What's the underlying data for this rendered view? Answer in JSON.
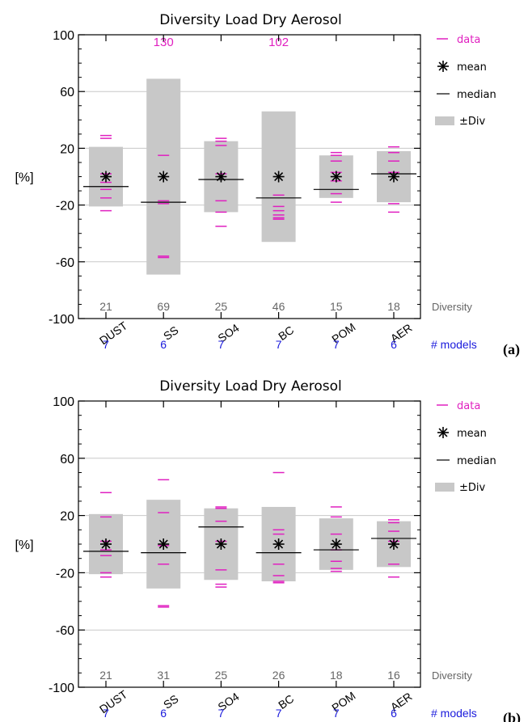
{
  "chart_data": [
    {
      "type": "box",
      "panel_label": "(a)",
      "title": "Diversity Load Dry Aerosol",
      "ylabel": "[%]",
      "ylim": [
        -100,
        100
      ],
      "yticks": [
        -100,
        -60,
        -20,
        20,
        60,
        100
      ],
      "gridlines": [
        -60,
        -20,
        20,
        60
      ],
      "categories": [
        "DUST",
        "SS",
        "SO4",
        "BC",
        "POM",
        "AER"
      ],
      "diversity": [
        21,
        69,
        25,
        46,
        15,
        18
      ],
      "n_models": [
        7,
        6,
        7,
        7,
        7,
        6
      ],
      "mean": [
        0,
        0,
        0,
        0,
        0,
        0
      ],
      "median": [
        -7,
        -18,
        -2,
        -15,
        -9,
        2
      ],
      "data": [
        [
          29,
          27,
          2,
          -4,
          -9,
          -15,
          -24
        ],
        [
          130,
          15,
          -17,
          -19,
          -56,
          -57
        ],
        [
          27,
          25,
          22,
          2,
          -17,
          -25,
          -35
        ],
        [
          102,
          -13,
          -21,
          -24,
          -27,
          -29,
          -30
        ],
        [
          17,
          15,
          11,
          3,
          -3,
          -12,
          -18
        ],
        [
          21,
          17,
          11,
          3,
          -19,
          -25
        ]
      ],
      "overflow_labels": [
        {
          "category": "SS",
          "text": "130"
        },
        {
          "category": "BC",
          "text": "102"
        }
      ],
      "diversity_label": "Diversity",
      "models_label": "# models"
    },
    {
      "type": "box",
      "panel_label": "(b)",
      "title": "Diversity Load Dry Aerosol",
      "ylabel": "[%]",
      "ylim": [
        -100,
        100
      ],
      "yticks": [
        -100,
        -60,
        -20,
        20,
        60,
        100
      ],
      "gridlines": [
        -60,
        -20,
        20,
        60
      ],
      "categories": [
        "DUST",
        "SS",
        "SO4",
        "BC",
        "POM",
        "AER"
      ],
      "diversity": [
        21,
        31,
        25,
        26,
        18,
        16
      ],
      "n_models": [
        7,
        6,
        7,
        7,
        7,
        6
      ],
      "mean": [
        0,
        0,
        0,
        0,
        0,
        0
      ],
      "median": [
        -5,
        -6,
        12,
        -6,
        -4,
        4
      ],
      "data": [
        [
          36,
          19,
          2,
          -4,
          -8,
          -20,
          -23
        ],
        [
          45,
          22,
          -1,
          -14,
          -43,
          -44
        ],
        [
          26,
          25,
          16,
          2,
          -18,
          -28,
          -30
        ],
        [
          50,
          10,
          7,
          -14,
          -22,
          -26,
          -27
        ],
        [
          26,
          19,
          7,
          -4,
          -12,
          -17,
          -19
        ],
        [
          17,
          15,
          9,
          2,
          -14,
          -23
        ]
      ],
      "overflow_labels": [],
      "diversity_label": "Diversity",
      "models_label": "# models"
    }
  ],
  "legend": {
    "data": "data",
    "mean": "mean",
    "median": "median",
    "div": "±Div"
  },
  "colors": {
    "box": "#c8c8c8",
    "data": "#e020c0",
    "models": "#1a1adc",
    "grid": "#c8c8c8",
    "diversity": "#666666"
  }
}
